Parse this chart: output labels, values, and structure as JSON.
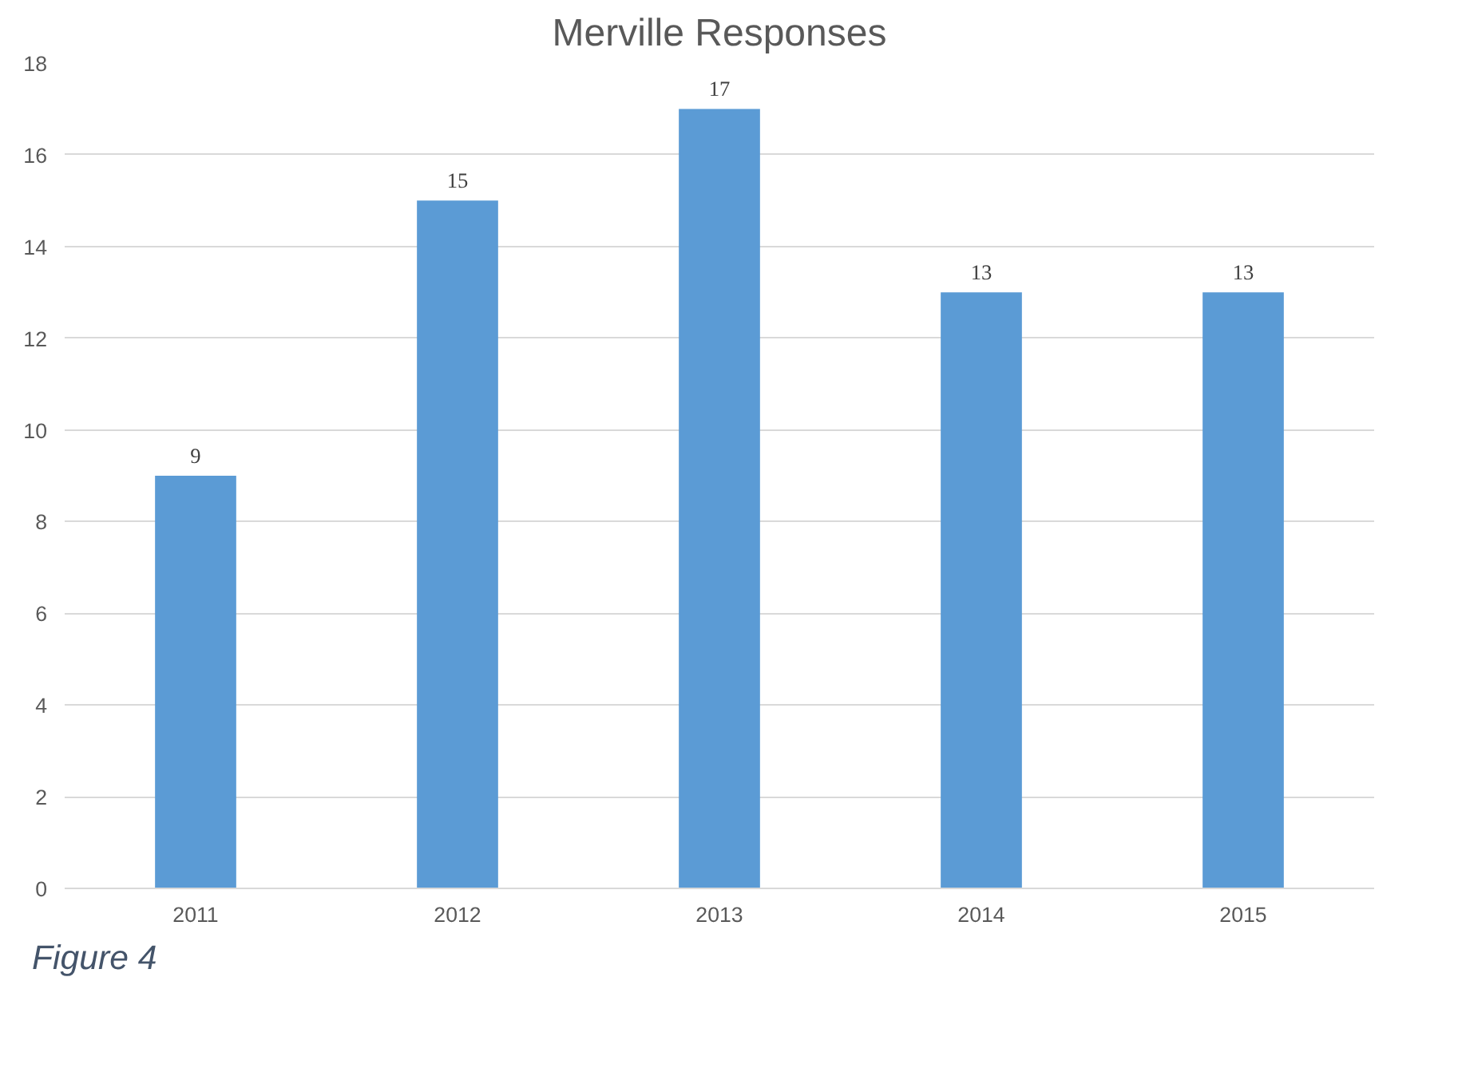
{
  "chart_data": {
    "type": "bar",
    "title": "Merville Responses",
    "categories": [
      "2011",
      "2012",
      "2013",
      "2014",
      "2015"
    ],
    "values": [
      9,
      15,
      17,
      13,
      13
    ],
    "color": "#5b9bd5",
    "ylim": [
      0,
      18
    ],
    "yticks": [
      0,
      2,
      4,
      6,
      8,
      10,
      12,
      14,
      16,
      18
    ],
    "grid": "y",
    "data_labels": true,
    "annotations": [
      "Figure 4"
    ]
  }
}
